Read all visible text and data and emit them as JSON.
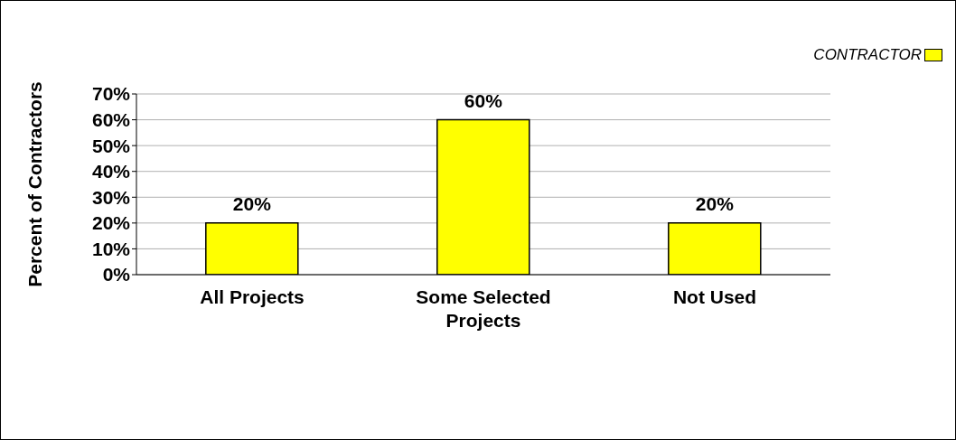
{
  "chart_data": {
    "type": "bar",
    "ylabel": "Percent of Contractors",
    "categories": [
      "All Projects",
      "Some Selected Projects",
      "Not Used"
    ],
    "series": [
      {
        "name": "CONTRACTOR",
        "color": "#ffff00",
        "values": [
          20,
          60,
          20
        ],
        "value_labels": [
          "20%",
          "60%",
          "20%"
        ]
      }
    ],
    "ylim": [
      0,
      70
    ],
    "yticks": [
      {
        "value": 0,
        "label": "0%"
      },
      {
        "value": 10,
        "label": "10%"
      },
      {
        "value": 20,
        "label": "20%"
      },
      {
        "value": 30,
        "label": "30%"
      },
      {
        "value": 40,
        "label": "40%"
      },
      {
        "value": 50,
        "label": "50%"
      },
      {
        "value": 60,
        "label": "60%"
      },
      {
        "value": 70,
        "label": "70%"
      }
    ],
    "grid": "y",
    "legend": "top right"
  }
}
